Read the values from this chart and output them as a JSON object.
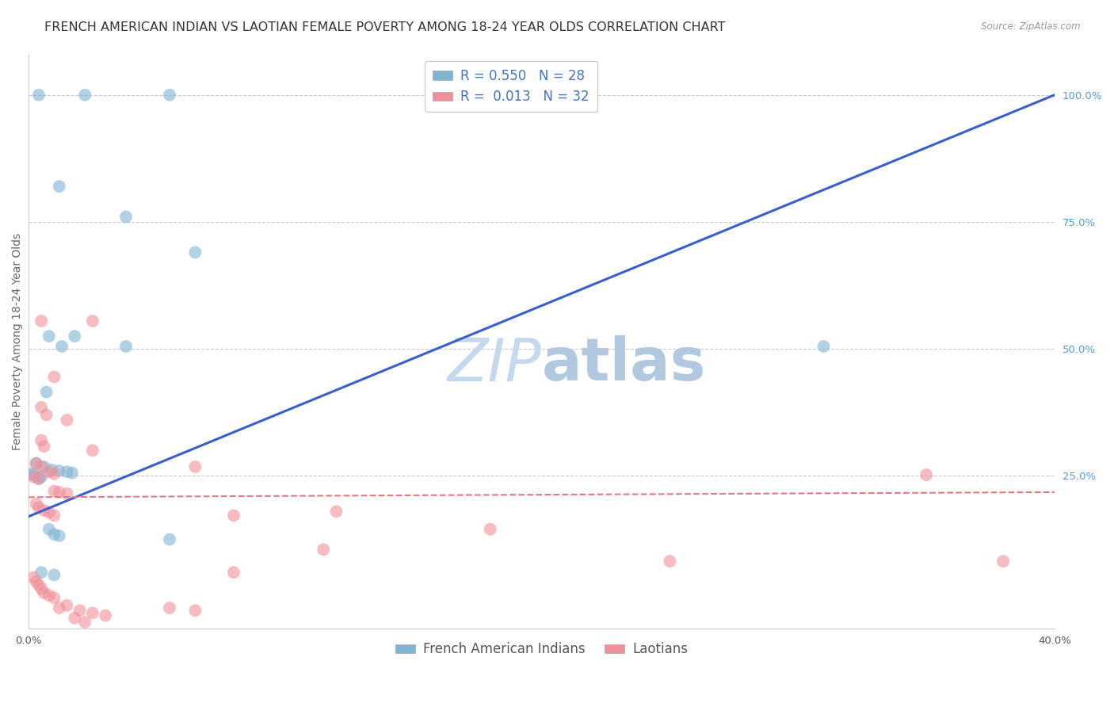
{
  "title": "FRENCH AMERICAN INDIAN VS LAOTIAN FEMALE POVERTY AMONG 18-24 YEAR OLDS CORRELATION CHART",
  "source": "Source: ZipAtlas.com",
  "ylabel": "Female Poverty Among 18-24 Year Olds",
  "watermark_zip": "ZIP",
  "watermark_atlas": "atlas",
  "french_ai_color": "#7fb3d3",
  "laotian_color": "#f0909a",
  "trendline_blue": "#3a5fcd",
  "trendline_pink": "#e07885",
  "grid_color": "#c8c8d0",
  "right_tick_color": "#5b9bd5",
  "xlim": [
    0.0,
    0.4
  ],
  "ylim": [
    -0.05,
    1.08
  ],
  "french_ai_points": [
    [
      0.004,
      1.0
    ],
    [
      0.022,
      1.0
    ],
    [
      0.055,
      1.0
    ],
    [
      0.012,
      0.82
    ],
    [
      0.038,
      0.76
    ],
    [
      0.065,
      0.69
    ],
    [
      0.008,
      0.525
    ],
    [
      0.018,
      0.525
    ],
    [
      0.013,
      0.505
    ],
    [
      0.038,
      0.505
    ],
    [
      0.007,
      0.415
    ],
    [
      0.003,
      0.275
    ],
    [
      0.006,
      0.268
    ],
    [
      0.009,
      0.262
    ],
    [
      0.012,
      0.26
    ],
    [
      0.015,
      0.258
    ],
    [
      0.017,
      0.256
    ],
    [
      0.001,
      0.254
    ],
    [
      0.002,
      0.252
    ],
    [
      0.005,
      0.248
    ],
    [
      0.004,
      0.245
    ],
    [
      0.008,
      0.145
    ],
    [
      0.01,
      0.135
    ],
    [
      0.012,
      0.132
    ],
    [
      0.055,
      0.125
    ],
    [
      0.005,
      0.06
    ],
    [
      0.01,
      0.055
    ],
    [
      0.31,
      0.505
    ]
  ],
  "laotian_points": [
    [
      0.005,
      0.555
    ],
    [
      0.025,
      0.555
    ],
    [
      0.01,
      0.445
    ],
    [
      0.005,
      0.385
    ],
    [
      0.007,
      0.37
    ],
    [
      0.015,
      0.36
    ],
    [
      0.005,
      0.32
    ],
    [
      0.006,
      0.308
    ],
    [
      0.025,
      0.3
    ],
    [
      0.003,
      0.274
    ],
    [
      0.005,
      0.268
    ],
    [
      0.008,
      0.258
    ],
    [
      0.01,
      0.254
    ],
    [
      0.002,
      0.248
    ],
    [
      0.004,
      0.244
    ],
    [
      0.065,
      0.268
    ],
    [
      0.01,
      0.22
    ],
    [
      0.012,
      0.218
    ],
    [
      0.015,
      0.215
    ],
    [
      0.003,
      0.195
    ],
    [
      0.004,
      0.188
    ],
    [
      0.006,
      0.182
    ],
    [
      0.008,
      0.178
    ],
    [
      0.01,
      0.172
    ],
    [
      0.08,
      0.172
    ],
    [
      0.12,
      0.18
    ],
    [
      0.18,
      0.145
    ],
    [
      0.115,
      0.105
    ],
    [
      0.25,
      0.082
    ],
    [
      0.35,
      0.252
    ],
    [
      0.38,
      0.082
    ],
    [
      0.002,
      0.05
    ],
    [
      0.003,
      0.042
    ],
    [
      0.004,
      0.035
    ],
    [
      0.005,
      0.028
    ],
    [
      0.006,
      0.02
    ],
    [
      0.008,
      0.015
    ],
    [
      0.01,
      0.01
    ],
    [
      0.015,
      -0.005
    ],
    [
      0.012,
      -0.01
    ],
    [
      0.02,
      -0.015
    ],
    [
      0.025,
      -0.02
    ],
    [
      0.03,
      -0.025
    ],
    [
      0.018,
      -0.03
    ],
    [
      0.022,
      -0.038
    ],
    [
      0.055,
      -0.01
    ],
    [
      0.065,
      -0.015
    ],
    [
      0.08,
      0.06
    ]
  ],
  "blue_trend_x": [
    0.0,
    0.4
  ],
  "blue_trend_y": [
    0.17,
    1.0
  ],
  "pink_trend_x": [
    0.0,
    0.4
  ],
  "pink_trend_y": [
    0.208,
    0.218
  ],
  "marker_size": 130,
  "title_fontsize": 11.5,
  "axis_label_fontsize": 10,
  "tick_fontsize": 9.5,
  "legend_fontsize": 12,
  "watermark_fontsize_zip": 54,
  "watermark_fontsize_atlas": 54,
  "watermark_color_zip": "#c5d8ee",
  "watermark_color_atlas": "#b0c8e0",
  "bottom_legend_labels": [
    "French American Indians",
    "Laotians"
  ]
}
